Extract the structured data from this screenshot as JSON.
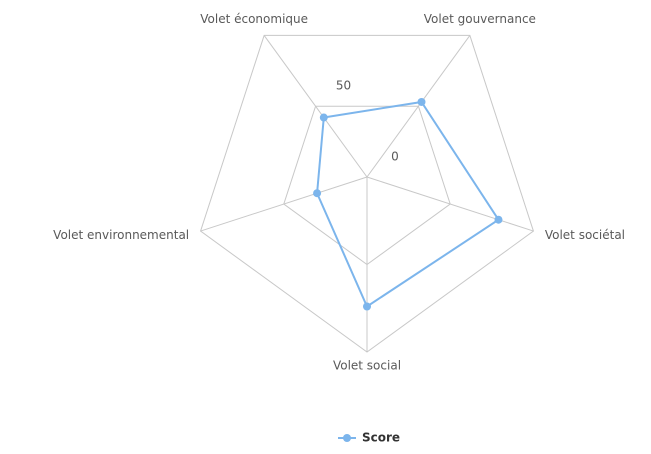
{
  "chart_data": {
    "type": "radar",
    "categories": [
      "Volet économique",
      "Volet gouvernance",
      "Volet sociétal",
      "Volet social",
      "Volet environnemental"
    ],
    "series": [
      {
        "name": "Score",
        "color": "#7cb5ec",
        "values": [
          42,
          53,
          79,
          74,
          30
        ]
      }
    ],
    "rlim": [
      0,
      100
    ],
    "rticks": [
      0,
      50
    ],
    "grid": true,
    "legend": "bottom"
  }
}
